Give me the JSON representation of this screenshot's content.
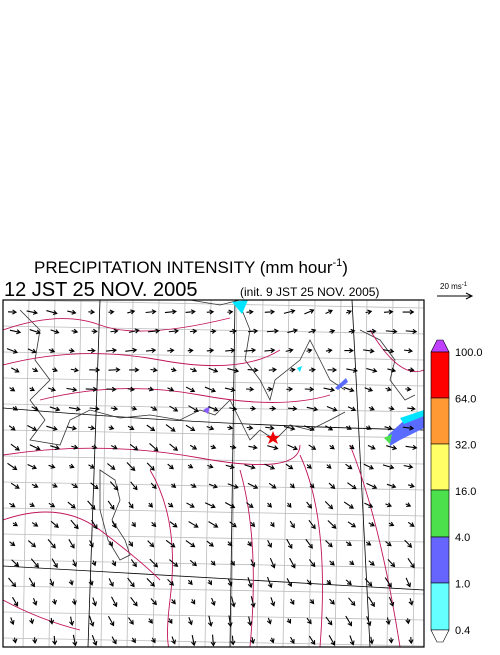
{
  "title": {
    "main": "PRECIPITATION INTENSITY (mm hour",
    "exponent": "-1",
    "close": ")"
  },
  "subtitle": {
    "time": "12 JST 25 NOV. 2005",
    "init": "(init. 9 JST 25 NOV. 2005)"
  },
  "scale": {
    "label": "20 ms",
    "exponent": "-1"
  },
  "colorbar": {
    "labels": [
      "100.0",
      "64.0",
      "32.0",
      "16.0",
      "4.0",
      "1.0",
      "0.4"
    ]
  }
}
